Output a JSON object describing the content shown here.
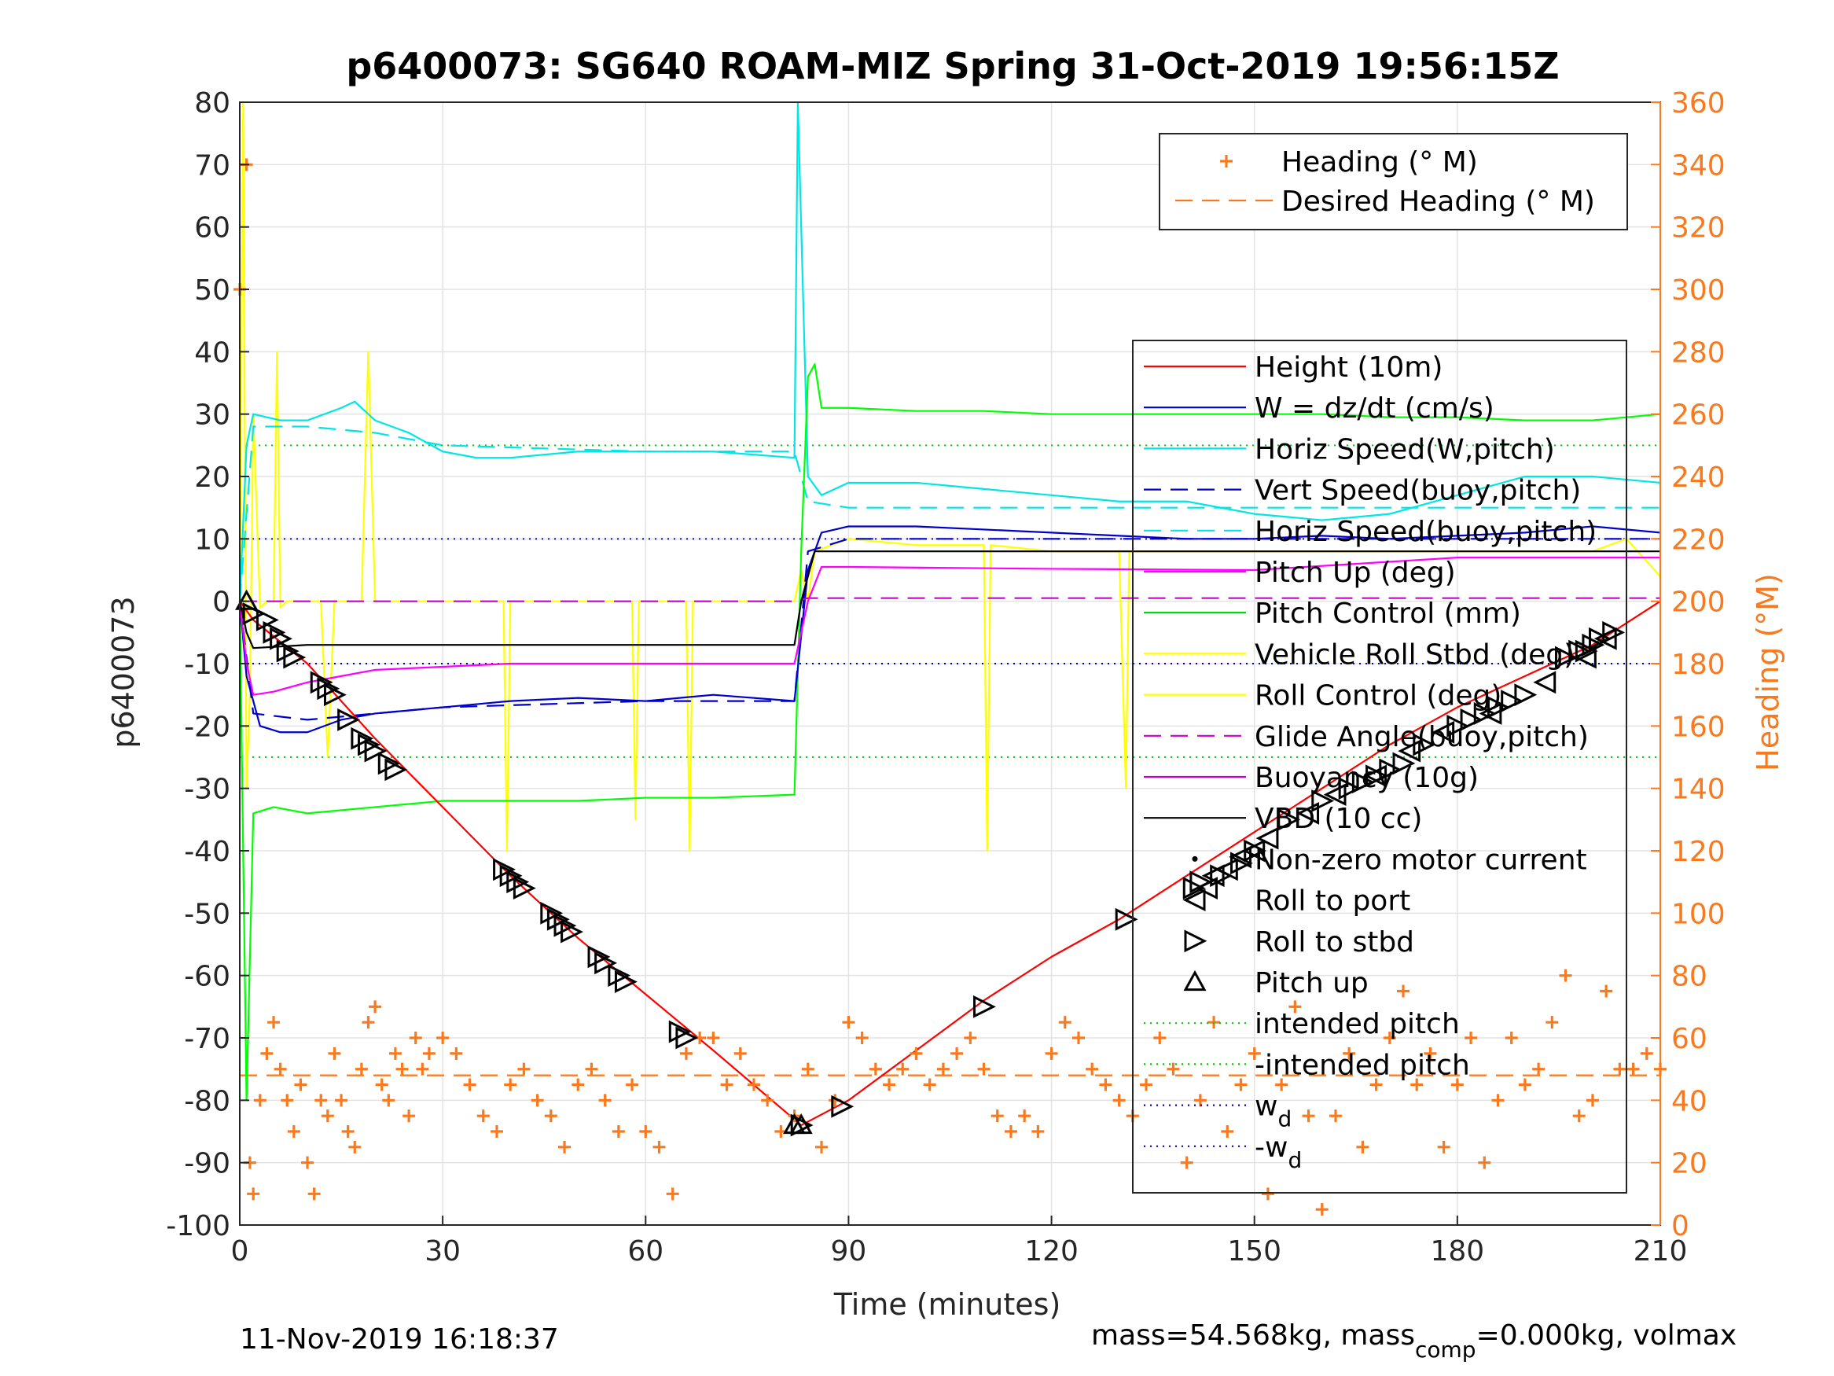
{
  "chart_data": {
    "type": "line",
    "title": "p6400073: SG640 ROAM-MIZ Spring 31-Oct-2019 19:56:15Z",
    "xlabel": "Time (minutes)",
    "ylabel": "p6400073",
    "y2label": "Heading (°M)",
    "xlim": [
      0,
      210
    ],
    "ylim": [
      -100,
      80
    ],
    "y2lim": [
      0,
      360
    ],
    "xticks": [
      0,
      30,
      60,
      90,
      120,
      150,
      180,
      210
    ],
    "yticks": [
      80,
      70,
      60,
      50,
      40,
      30,
      20,
      10,
      0,
      -10,
      -20,
      -30,
      -40,
      -50,
      -60,
      -70,
      -80,
      -90,
      -100
    ],
    "y2ticks": [
      360,
      340,
      320,
      300,
      280,
      260,
      240,
      220,
      200,
      180,
      160,
      140,
      120,
      100,
      80,
      60,
      40,
      20,
      0
    ],
    "grid": true,
    "footer_left": "11-Nov-2019 16:18:37",
    "footer_right": {
      "a": "mass=54.568kg, mass",
      "sub": "comp",
      "b": "=0.000kg, volmax"
    },
    "legend_top": [
      {
        "label": "Heading (° M)",
        "color": "#f97a1e",
        "style": "plus"
      },
      {
        "label": "Desired Heading (° M)",
        "color": "#f97a1e",
        "style": "dash"
      }
    ],
    "legend_main": [
      {
        "label": "Height (10m)",
        "color": "#ff0000",
        "style": "solid"
      },
      {
        "label": "W = dz/dt (cm/s)",
        "color": "#0000cc",
        "style": "solid"
      },
      {
        "label": "Horiz Speed(W,pitch)",
        "color": "#00e5e5",
        "style": "solid"
      },
      {
        "label": "Vert Speed(buoy,pitch)",
        "color": "#0000cc",
        "style": "dash"
      },
      {
        "label": "Horiz Speed(buoy,pitch)",
        "color": "#00e5e5",
        "style": "dash"
      },
      {
        "label": "Pitch Up (deg)",
        "color": "#ff00ff",
        "style": "solid"
      },
      {
        "label": "Pitch Control (mm)",
        "color": "#00cc00",
        "style": "solid"
      },
      {
        "label": "Vehicle Roll Stbd (deg)",
        "color": "#ffff00",
        "style": "solid"
      },
      {
        "label": "Roll Control (deg)",
        "color": "#ffff00",
        "style": "solid"
      },
      {
        "label": "Glide Angle(buoy,pitch)",
        "color": "#cc00cc",
        "style": "dash"
      },
      {
        "label": "Buoyancy (10g)",
        "color": "#cc00cc",
        "style": "solid"
      },
      {
        "label": "VBD (10 cc)",
        "color": "#000000",
        "style": "solid"
      },
      {
        "label": "Non-zero motor current",
        "color": "#000000",
        "style": "dot"
      },
      {
        "label": "Roll to port",
        "color": "#000000",
        "style": "tri-left"
      },
      {
        "label": "Roll to stbd",
        "color": "#000000",
        "style": "tri-right"
      },
      {
        "label": "Pitch up",
        "color": "#000000",
        "style": "tri-up"
      },
      {
        "label": "intended pitch",
        "color": "#00cc00",
        "style": "dotted"
      },
      {
        "label": "-intended pitch",
        "color": "#00cc00",
        "style": "dotted"
      },
      {
        "label": "w",
        "sub": "d",
        "color": "#0000cc",
        "style": "dotted"
      },
      {
        "label": "-w",
        "sub": "d",
        "color": "#0000cc",
        "style": "dotted"
      }
    ],
    "series": [
      {
        "name": "Height (10m)",
        "color": "#ff0000",
        "x": [
          0,
          2,
          10,
          20,
          30,
          40,
          50,
          60,
          70,
          83,
          90,
          100,
          110,
          120,
          130,
          140,
          150,
          160,
          170,
          180,
          190,
          200,
          210
        ],
        "y": [
          0,
          -3,
          -10,
          -22,
          -33,
          -44,
          -54,
          -63,
          -72,
          -84,
          -80,
          -72,
          -64,
          -57,
          -51,
          -44,
          -37,
          -30,
          -23,
          -17,
          -12,
          -7,
          0
        ]
      },
      {
        "name": "W = dz/dt (cm/s)",
        "color": "#0000cc",
        "x": [
          0,
          1,
          3,
          6,
          10,
          15,
          20,
          30,
          40,
          50,
          60,
          70,
          82,
          84,
          86,
          90,
          100,
          110,
          120,
          130,
          140,
          150,
          160,
          170,
          180,
          190,
          200,
          210
        ],
        "y": [
          0,
          -12,
          -20,
          -21,
          -21,
          -19,
          -18,
          -17,
          -16,
          -15.5,
          -16,
          -15,
          -16,
          5,
          11,
          12,
          12,
          11.5,
          11,
          10.5,
          10,
          10,
          10.5,
          10,
          10.5,
          11,
          12,
          11
        ]
      },
      {
        "name": "Horiz Speed(W,pitch)",
        "color": "#00e5e5",
        "x": [
          0,
          1,
          2,
          6,
          10,
          15,
          17,
          20,
          25,
          30,
          35,
          40,
          50,
          60,
          70,
          82,
          82.5,
          84,
          86,
          90,
          100,
          110,
          120,
          130,
          140,
          150,
          160,
          170,
          180,
          190,
          200,
          210
        ],
        "y": [
          0,
          25,
          30,
          29,
          29,
          31,
          32,
          29,
          27,
          24,
          23,
          23,
          24,
          24,
          24,
          23,
          80,
          20,
          17,
          19,
          19,
          18,
          17,
          16,
          16,
          14,
          13,
          14,
          17,
          20,
          20,
          19
        ]
      },
      {
        "name": "Vert Speed(buoy,pitch)",
        "color": "#0000cc",
        "dash": true,
        "x": [
          0,
          2,
          10,
          30,
          60,
          82,
          84,
          90,
          120,
          150,
          180,
          210
        ],
        "y": [
          0,
          -18,
          -19,
          -17,
          -16,
          -16,
          8,
          10,
          10,
          10,
          10,
          10
        ]
      },
      {
        "name": "Horiz Speed(buoy,pitch)",
        "color": "#00e5e5",
        "dash": true,
        "x": [
          0,
          2,
          10,
          20,
          30,
          60,
          82,
          84,
          90,
          120,
          150,
          180,
          210
        ],
        "y": [
          0,
          28,
          28,
          27,
          25,
          24,
          24,
          16,
          15,
          15,
          15,
          15,
          15
        ]
      },
      {
        "name": "Pitch Control (mm)",
        "color": "#00ff00",
        "x": [
          0,
          1,
          2,
          5,
          10,
          20,
          30,
          40,
          50,
          60,
          70,
          82,
          83,
          84,
          85,
          86,
          90,
          100,
          110,
          120,
          130,
          140,
          150,
          160,
          170,
          180,
          190,
          200,
          210
        ],
        "y": [
          0,
          -80,
          -34,
          -33,
          -34,
          -33,
          -32,
          -32,
          -32,
          -31.5,
          -31.5,
          -31,
          8,
          36,
          38,
          31,
          31,
          30.5,
          30.5,
          30,
          30,
          30,
          30,
          30,
          29.5,
          29.5,
          29,
          29,
          30
        ]
      },
      {
        "name": "Pitch Up (deg)",
        "color": "#ff00ff",
        "x": [
          0,
          1,
          2,
          5,
          10,
          15,
          20,
          30,
          40,
          50,
          60,
          70,
          82,
          84,
          86,
          90,
          120,
          150,
          180,
          210
        ],
        "y": [
          0,
          -10,
          -15,
          -14.5,
          -13,
          -12,
          -11,
          -10.5,
          -10,
          -10,
          -10,
          -10,
          -10,
          0,
          5.5,
          5.5,
          5.2,
          5,
          7,
          7
        ]
      },
      {
        "name": "Glide Angle(buoy,pitch)",
        "color": "#cc00cc",
        "dash": true,
        "x": [
          0,
          82,
          84,
          210
        ],
        "y": [
          0,
          0,
          0.5,
          0.5
        ]
      },
      {
        "name": "VBD (10 cc)",
        "color": "#000000",
        "x": [
          0,
          1,
          2,
          10,
          82,
          83,
          85,
          210
        ],
        "y": [
          0,
          -5,
          -7.5,
          -7,
          -7,
          0,
          8,
          8
        ]
      },
      {
        "name": "Vehicle Roll Stbd (deg)",
        "color": "#ffff00",
        "x": [
          0,
          0.5,
          1,
          1.5,
          2,
          3,
          4,
          5,
          5.5,
          6,
          7,
          10,
          12,
          13,
          14,
          18,
          19,
          20,
          25,
          30,
          35,
          39,
          39.5,
          40,
          45,
          50,
          55,
          58,
          58.5,
          59,
          65,
          66,
          66.5,
          67,
          70,
          80,
          82,
          83,
          84,
          85,
          90,
          100,
          110,
          110.5,
          111,
          120,
          130,
          131,
          131.5,
          140,
          150,
          160,
          170,
          180,
          190,
          200,
          205,
          210
        ],
        "y": [
          0,
          80,
          -30,
          -15,
          30,
          -1,
          0,
          0,
          40,
          -1,
          0,
          0,
          0,
          -25,
          0,
          0,
          40,
          0,
          0,
          0,
          0,
          0,
          -40,
          0,
          0,
          0,
          0,
          0,
          -35,
          0,
          0,
          0,
          -40,
          0,
          0,
          0,
          0,
          5,
          0,
          8,
          10,
          9,
          9,
          -40,
          9,
          8,
          8,
          -30,
          8,
          8,
          8,
          8,
          8,
          8,
          8,
          8,
          10,
          4
        ]
      },
      {
        "name": "Heading (° M)",
        "color": "#f97a1e",
        "marker": "plus",
        "x": [
          0,
          1,
          1.5,
          2,
          3,
          4,
          5,
          6,
          7,
          8,
          9,
          10,
          11,
          12,
          13,
          14,
          15,
          16,
          17,
          18,
          19,
          20,
          21,
          22,
          23,
          24,
          25,
          26,
          27,
          28,
          30,
          32,
          34,
          36,
          38,
          40,
          42,
          44,
          46,
          48,
          50,
          52,
          54,
          56,
          58,
          60,
          62,
          64,
          66,
          68,
          70,
          72,
          74,
          76,
          78,
          80,
          82,
          84,
          86,
          88,
          90,
          92,
          94,
          96,
          98,
          100,
          102,
          104,
          106,
          108,
          110,
          112,
          114,
          116,
          118,
          120,
          122,
          124,
          126,
          128,
          130,
          132,
          134,
          136,
          138,
          140,
          142,
          144,
          146,
          148,
          150,
          152,
          154,
          156,
          158,
          160,
          162,
          164,
          166,
          168,
          170,
          172,
          174,
          176,
          178,
          180,
          182,
          184,
          186,
          188,
          190,
          192,
          194,
          196,
          198,
          200,
          202,
          204,
          206,
          208,
          210
        ],
        "y": [
          300,
          340,
          20,
          10,
          40,
          55,
          65,
          50,
          40,
          30,
          45,
          20,
          10,
          40,
          35,
          55,
          40,
          30,
          25,
          50,
          65,
          70,
          45,
          40,
          55,
          50,
          35,
          60,
          50,
          55,
          60,
          55,
          45,
          35,
          30,
          45,
          50,
          40,
          35,
          25,
          45,
          50,
          40,
          30,
          45,
          30,
          25,
          10,
          55,
          60,
          60,
          45,
          55,
          45,
          40,
          30,
          35,
          50,
          25,
          40,
          65,
          60,
          50,
          45,
          50,
          55,
          45,
          50,
          55,
          60,
          50,
          35,
          30,
          35,
          30,
          55,
          65,
          60,
          50,
          45,
          40,
          35,
          45,
          60,
          50,
          20,
          40,
          65,
          30,
          45,
          55,
          10,
          45,
          70,
          35,
          5,
          35,
          55,
          25,
          45,
          60,
          75,
          45,
          55,
          25,
          45,
          60,
          20,
          40,
          60,
          45,
          50,
          65,
          80,
          35,
          40,
          75,
          50,
          50,
          55,
          50
        ]
      },
      {
        "name": "Desired Heading (° M)",
        "color": "#f97a1e",
        "dash": true,
        "x": [
          0,
          210
        ],
        "y2": [
          48,
          48
        ]
      }
    ],
    "ref_lines": [
      {
        "name": "intended pitch",
        "color": "#00cc00",
        "y": 25
      },
      {
        "name": "-intended pitch",
        "color": "#00cc00",
        "y": -25
      },
      {
        "name": "w_d",
        "color": "#0000cc",
        "y": 10
      },
      {
        "name": "-w_d",
        "color": "#0000cc",
        "y": -10
      }
    ],
    "markers": {
      "roll_stbd": {
        "x": [
          2,
          4,
          5,
          6,
          7,
          8,
          12,
          13,
          14,
          16,
          18,
          19,
          20,
          22,
          23,
          39,
          40,
          41,
          42,
          46,
          47,
          48,
          49,
          53,
          54,
          56,
          57,
          65,
          66,
          83,
          89,
          110,
          131,
          141,
          142,
          145,
          148,
          150,
          155,
          160,
          164,
          166,
          168,
          170,
          172,
          175,
          180,
          182,
          184,
          186,
          188,
          190,
          196,
          198,
          199,
          200,
          201,
          203
        ],
        "y": [
          -2,
          -3,
          -5,
          -6,
          -8,
          -9,
          -13,
          -14,
          -15,
          -19,
          -22,
          -23,
          -24,
          -26,
          -27,
          -43,
          -44,
          -45,
          -46,
          -50,
          -51,
          -52,
          -53,
          -57,
          -58,
          -60,
          -61,
          -69,
          -70,
          -84,
          -81,
          -65,
          -51,
          -46,
          -45,
          -44,
          -42,
          -40,
          -35,
          -32,
          -30,
          -29,
          -28,
          -27,
          -26,
          -23,
          -20,
          -19,
          -18,
          -17,
          -16,
          -15,
          -9,
          -8,
          -8,
          -7,
          -6,
          -5
        ]
      },
      "roll_port": {
        "x": [
          143,
          144,
          146,
          148,
          150,
          152,
          158,
          162,
          168,
          173,
          178,
          185,
          193,
          199,
          202
        ],
        "y": [
          -46,
          -44,
          -43,
          -41,
          -40,
          -38,
          -34,
          -31,
          -28,
          -24,
          -21,
          -18,
          -13,
          -9,
          -6
        ]
      },
      "pitch_up": {
        "x": [
          1,
          82,
          83
        ],
        "y": [
          0,
          -84,
          -84
        ]
      }
    }
  }
}
